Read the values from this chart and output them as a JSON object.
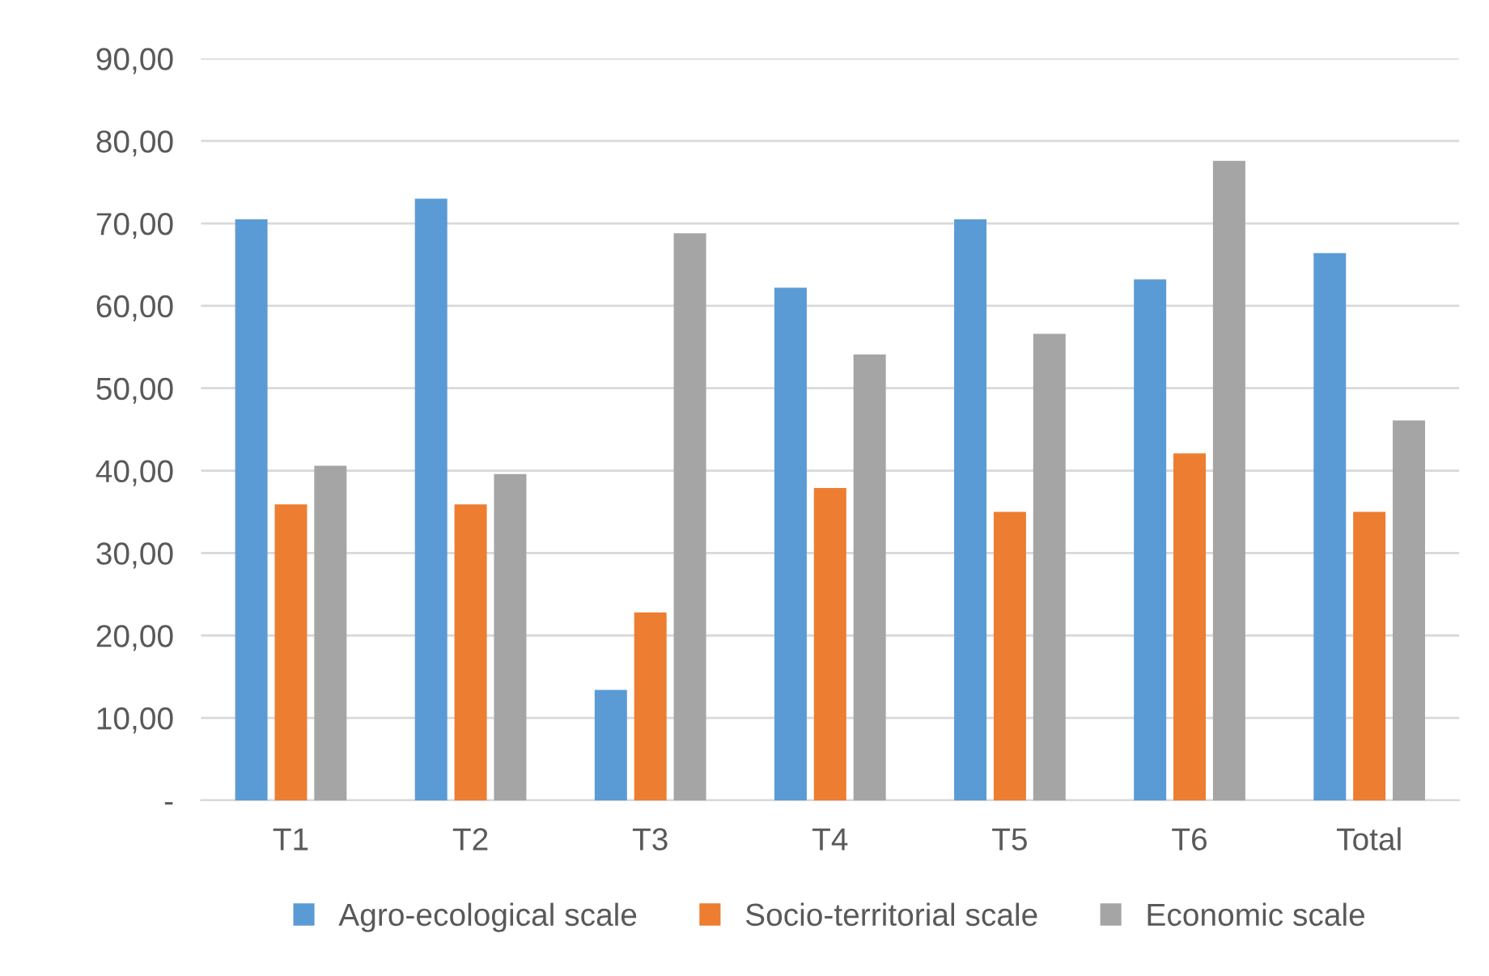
{
  "chart_data": {
    "type": "bar",
    "categories": [
      "T1",
      "T2",
      "T3",
      "T4",
      "T5",
      "T6",
      "Total"
    ],
    "series": [
      {
        "name": "Agro-ecological scale",
        "color": "#5b9bd5",
        "values": [
          70.5,
          73.0,
          13.4,
          62.2,
          70.5,
          63.2,
          66.4
        ]
      },
      {
        "name": "Socio-territorial scale",
        "color": "#ed7d31",
        "values": [
          35.9,
          35.9,
          22.8,
          37.9,
          35.0,
          42.1,
          35.0
        ]
      },
      {
        "name": "Economic scale",
        "color": "#a5a5a5",
        "values": [
          40.6,
          39.6,
          68.8,
          54.1,
          56.6,
          77.6,
          46.1
        ]
      }
    ],
    "ylim": [
      0,
      90
    ],
    "yticks": [
      {
        "value": 0,
        "label": "-"
      },
      {
        "value": 10,
        "label": "10,00"
      },
      {
        "value": 20,
        "label": "20,00"
      },
      {
        "value": 30,
        "label": "30,00"
      },
      {
        "value": 40,
        "label": "40,00"
      },
      {
        "value": 50,
        "label": "50,00"
      },
      {
        "value": 60,
        "label": "60,00"
      },
      {
        "value": 70,
        "label": "70,00"
      },
      {
        "value": 80,
        "label": "80,00"
      },
      {
        "value": 90,
        "label": "90,00"
      }
    ],
    "grid": "y",
    "legend": "bottom"
  }
}
